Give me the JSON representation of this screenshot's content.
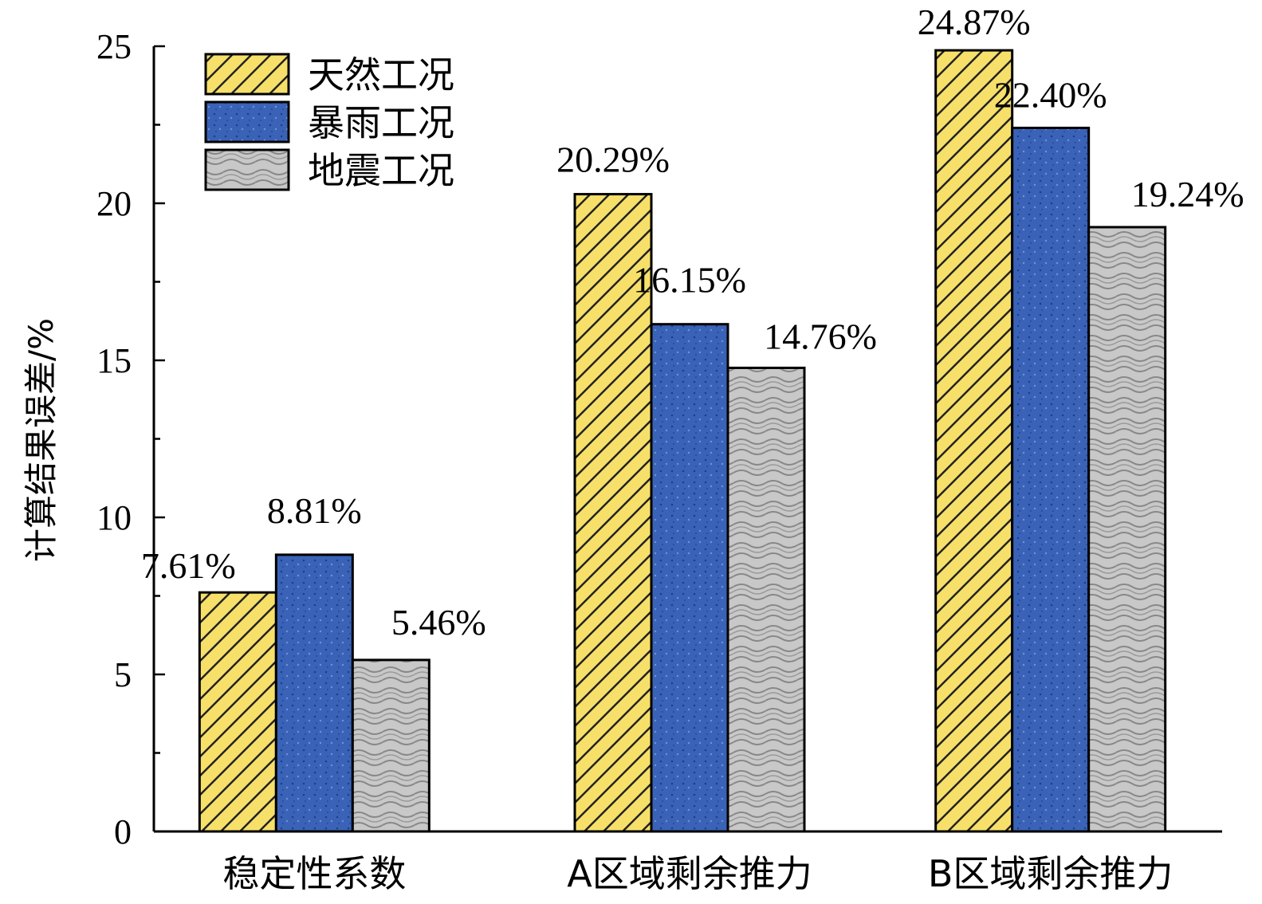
{
  "chart_data": {
    "type": "bar",
    "categories": [
      "稳定性系数",
      "A区域剩余推力",
      "B区域剩余推力"
    ],
    "series": [
      {
        "name": "天然工况",
        "values": [
          7.61,
          20.29,
          24.87
        ],
        "labels": [
          "7.61%",
          "20.29%",
          "24.87%"
        ],
        "color": "#f7e06a",
        "pattern": "diagonal-hatch"
      },
      {
        "name": "暴雨工况",
        "values": [
          8.81,
          16.15,
          22.4
        ],
        "labels": [
          "8.81%",
          "16.15%",
          "22.40%"
        ],
        "color": "#3a63b8",
        "pattern": "dots"
      },
      {
        "name": "地震工况",
        "values": [
          5.46,
          14.76,
          19.24
        ],
        "labels": [
          "5.46%",
          "14.76%",
          "19.24%"
        ],
        "color": "#c8c8c8",
        "pattern": "waves"
      }
    ],
    "title": "",
    "xlabel": "",
    "ylabel": "计算结果误差/%",
    "ylim": [
      0,
      25
    ],
    "yticks": [
      "0",
      "5",
      "10",
      "15",
      "20",
      "25"
    ],
    "grid": false,
    "legend_position": "top-left"
  }
}
